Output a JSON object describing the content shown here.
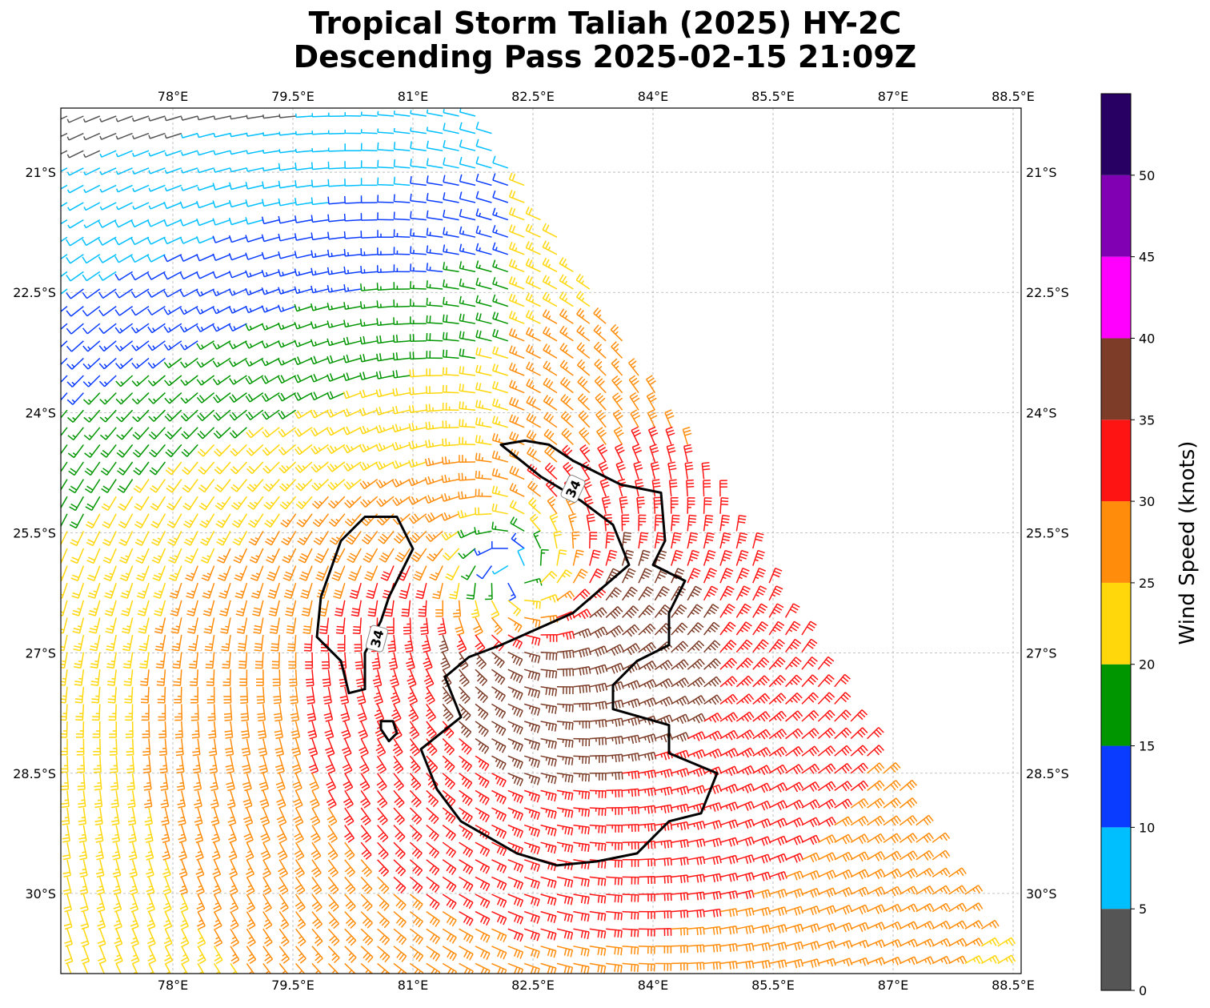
{
  "title_line1": "Tropical Storm Taliah (2025) HY-2C",
  "title_line2": "Descending Pass 2025-02-15 21:09Z",
  "colorbar_label": "Wind Speed (knots)",
  "colorbar": {
    "ticks": [
      "0",
      "5",
      "10",
      "15",
      "20",
      "25",
      "30",
      "35",
      "40",
      "45",
      "50"
    ],
    "bins": [
      {
        "min": 0,
        "max": 5,
        "color": "#555555"
      },
      {
        "min": 5,
        "max": 10,
        "color": "#00bfff"
      },
      {
        "min": 10,
        "max": 15,
        "color": "#0a3cff"
      },
      {
        "min": 15,
        "max": 20,
        "color": "#009600"
      },
      {
        "min": 20,
        "max": 25,
        "color": "#ffd70a"
      },
      {
        "min": 25,
        "max": 30,
        "color": "#ff8c0a"
      },
      {
        "min": 30,
        "max": 35,
        "color": "#ff1414"
      },
      {
        "min": 35,
        "max": 40,
        "color": "#7d3c28"
      },
      {
        "min": 40,
        "max": 45,
        "color": "#ff00ff"
      },
      {
        "min": 45,
        "max": 50,
        "color": "#8200b4"
      },
      {
        "min": 50,
        "max": 55,
        "color": "#280064"
      }
    ]
  },
  "map": {
    "lon_range": [
      76.6,
      88.6
    ],
    "lat_range": [
      -31.0,
      -20.2
    ],
    "lon_labels": [
      "78°E",
      "79.5°E",
      "81°E",
      "82.5°E",
      "84°E",
      "85.5°E",
      "87°E",
      "88.5°E"
    ],
    "lat_labels": [
      "21°S",
      "22.5°S",
      "24°S",
      "25.5°S",
      "27°S",
      "28.5°S",
      "30°S"
    ],
    "grid": true,
    "contour_level_label": "34",
    "storm_center_lon": 82.3,
    "storm_center_lat": -26.0
  },
  "chart_data": {
    "type": "wind-barb-map",
    "title": "Tropical Storm Taliah (2025) HY-2C Descending Pass 2025-02-15 21:09Z",
    "colorbar_label": "Wind Speed (knots)",
    "x_range": [
      76.6,
      88.6
    ],
    "y_range": [
      -31.0,
      -20.2
    ],
    "contour_34kt": [
      [
        [
          82.1,
          -24.4
        ],
        [
          82.4,
          -24.35
        ],
        [
          82.7,
          -24.4
        ],
        [
          83.0,
          -24.6
        ],
        [
          83.3,
          -24.75
        ],
        [
          83.6,
          -24.9
        ],
        [
          84.1,
          -25.0
        ],
        [
          84.15,
          -25.6
        ],
        [
          84.0,
          -25.9
        ],
        [
          84.4,
          -26.1
        ],
        [
          84.2,
          -26.5
        ],
        [
          84.2,
          -26.9
        ],
        [
          83.8,
          -27.1
        ],
        [
          83.5,
          -27.4
        ],
        [
          83.5,
          -27.7
        ],
        [
          84.2,
          -27.9
        ],
        [
          84.2,
          -28.25
        ],
        [
          84.8,
          -28.5
        ],
        [
          84.6,
          -29.0
        ],
        [
          84.2,
          -29.1
        ],
        [
          83.8,
          -29.5
        ],
        [
          83.3,
          -29.6
        ],
        [
          82.8,
          -29.65
        ],
        [
          82.3,
          -29.5
        ],
        [
          81.6,
          -29.1
        ],
        [
          81.3,
          -28.7
        ],
        [
          81.1,
          -28.2
        ],
        [
          81.6,
          -27.8
        ],
        [
          81.4,
          -27.3
        ],
        [
          81.7,
          -27.05
        ],
        [
          82.1,
          -26.9
        ],
        [
          83.0,
          -26.5
        ],
        [
          83.7,
          -25.9
        ],
        [
          83.5,
          -25.4
        ],
        [
          83.1,
          -25.1
        ],
        [
          82.6,
          -24.8
        ],
        [
          82.1,
          -24.4
        ]
      ],
      [
        [
          80.4,
          -25.3
        ],
        [
          80.8,
          -25.3
        ],
        [
          81.0,
          -25.7
        ],
        [
          80.7,
          -26.3
        ],
        [
          80.6,
          -26.6
        ],
        [
          80.4,
          -27.0
        ],
        [
          80.4,
          -27.45
        ],
        [
          80.2,
          -27.5
        ],
        [
          80.1,
          -27.1
        ],
        [
          79.8,
          -26.8
        ],
        [
          79.85,
          -26.3
        ],
        [
          80.1,
          -25.6
        ],
        [
          80.4,
          -25.3
        ]
      ],
      [
        [
          80.6,
          -27.85
        ],
        [
          80.75,
          -27.85
        ],
        [
          80.8,
          -28.0
        ],
        [
          80.7,
          -28.1
        ],
        [
          80.6,
          -27.95
        ]
      ]
    ]
  }
}
